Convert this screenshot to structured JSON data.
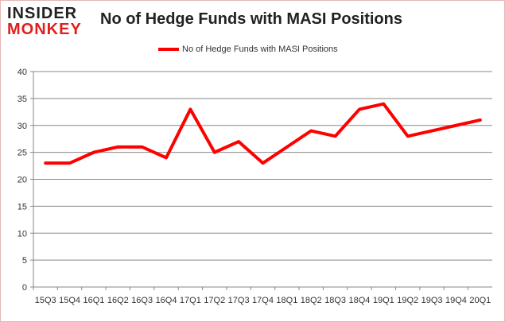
{
  "logo": {
    "line1": "INSIDER",
    "line2": "MONKEY"
  },
  "chart_data": {
    "type": "line",
    "title": "No of Hedge Funds with MASI Positions",
    "categories": [
      "15Q3",
      "15Q4",
      "16Q1",
      "16Q2",
      "16Q3",
      "16Q4",
      "17Q1",
      "17Q2",
      "17Q3",
      "17Q4",
      "18Q1",
      "18Q2",
      "18Q3",
      "18Q4",
      "19Q1",
      "19Q2",
      "19Q3",
      "19Q4",
      "20Q1"
    ],
    "series": [
      {
        "name": "No of Hedge Funds with MASI Positions",
        "color": "#ff0000",
        "values": [
          23,
          23,
          25,
          26,
          26,
          24,
          33,
          25,
          27,
          23,
          26,
          29,
          28,
          33,
          34,
          28,
          29,
          30,
          31
        ]
      }
    ],
    "ylim": [
      0,
      40
    ],
    "yticks": [
      0,
      5,
      10,
      15,
      20,
      25,
      30,
      35,
      40
    ],
    "grid": true,
    "legend": "top-center",
    "xlabel": "",
    "ylabel": ""
  }
}
